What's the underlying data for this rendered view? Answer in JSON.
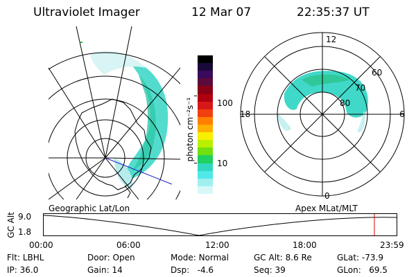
{
  "header": {
    "title": "Ultraviolet Imager",
    "date": "12 Mar 07",
    "time": "22:35:37 UT"
  },
  "colorbar": {
    "unit_label": "photon cm⁻²s⁻¹",
    "ticks": [
      "100",
      "10"
    ],
    "colors": [
      "#000000",
      "#1a0a3a",
      "#3b0a5c",
      "#5c0a3c",
      "#8a0015",
      "#b0000f",
      "#d81818",
      "#f04010",
      "#ff8000",
      "#ffb000",
      "#f8f000",
      "#b8f000",
      "#70e010",
      "#20d060",
      "#30d8c0",
      "#50e8e8",
      "#a0f0f0",
      "#d8f8f8"
    ]
  },
  "geo_panel": {
    "label": "Geographic Lat/Lon"
  },
  "apex_panel": {
    "label": "Apex MLat/MLT",
    "mlt_labels": {
      "top": "12",
      "left": "18",
      "right": "6",
      "bottom": "0"
    },
    "lat_labels": [
      "60",
      "70",
      "80"
    ]
  },
  "altitude_plot": {
    "ylabel": "GC Alt",
    "y_ticks": [
      "9.0",
      "1.8"
    ],
    "x_ticks": [
      "00:00",
      "06:00",
      "12:00",
      "18:00",
      "23:59"
    ],
    "marker_color": "#d00000"
  },
  "status": {
    "flt_label": "Flt:",
    "flt_value": "LBHL",
    "ip_label": "IP:",
    "ip_value": "36.0",
    "door_label": "Door:",
    "door_value": "Open",
    "gain_label": "Gain:",
    "gain_value": "14",
    "mode_label": "Mode:",
    "mode_value": "Normal",
    "dsp_label": "Dsp:",
    "dsp_value": "-4.6",
    "gcalt_label": "GC Alt:",
    "gcalt_value": "8.6 Re",
    "seq_label": "Seq:",
    "seq_value": "39",
    "glat_label": "GLat:",
    "glat_value": "-73.9",
    "glon_label": "GLon:",
    "glon_value": "69.5"
  }
}
